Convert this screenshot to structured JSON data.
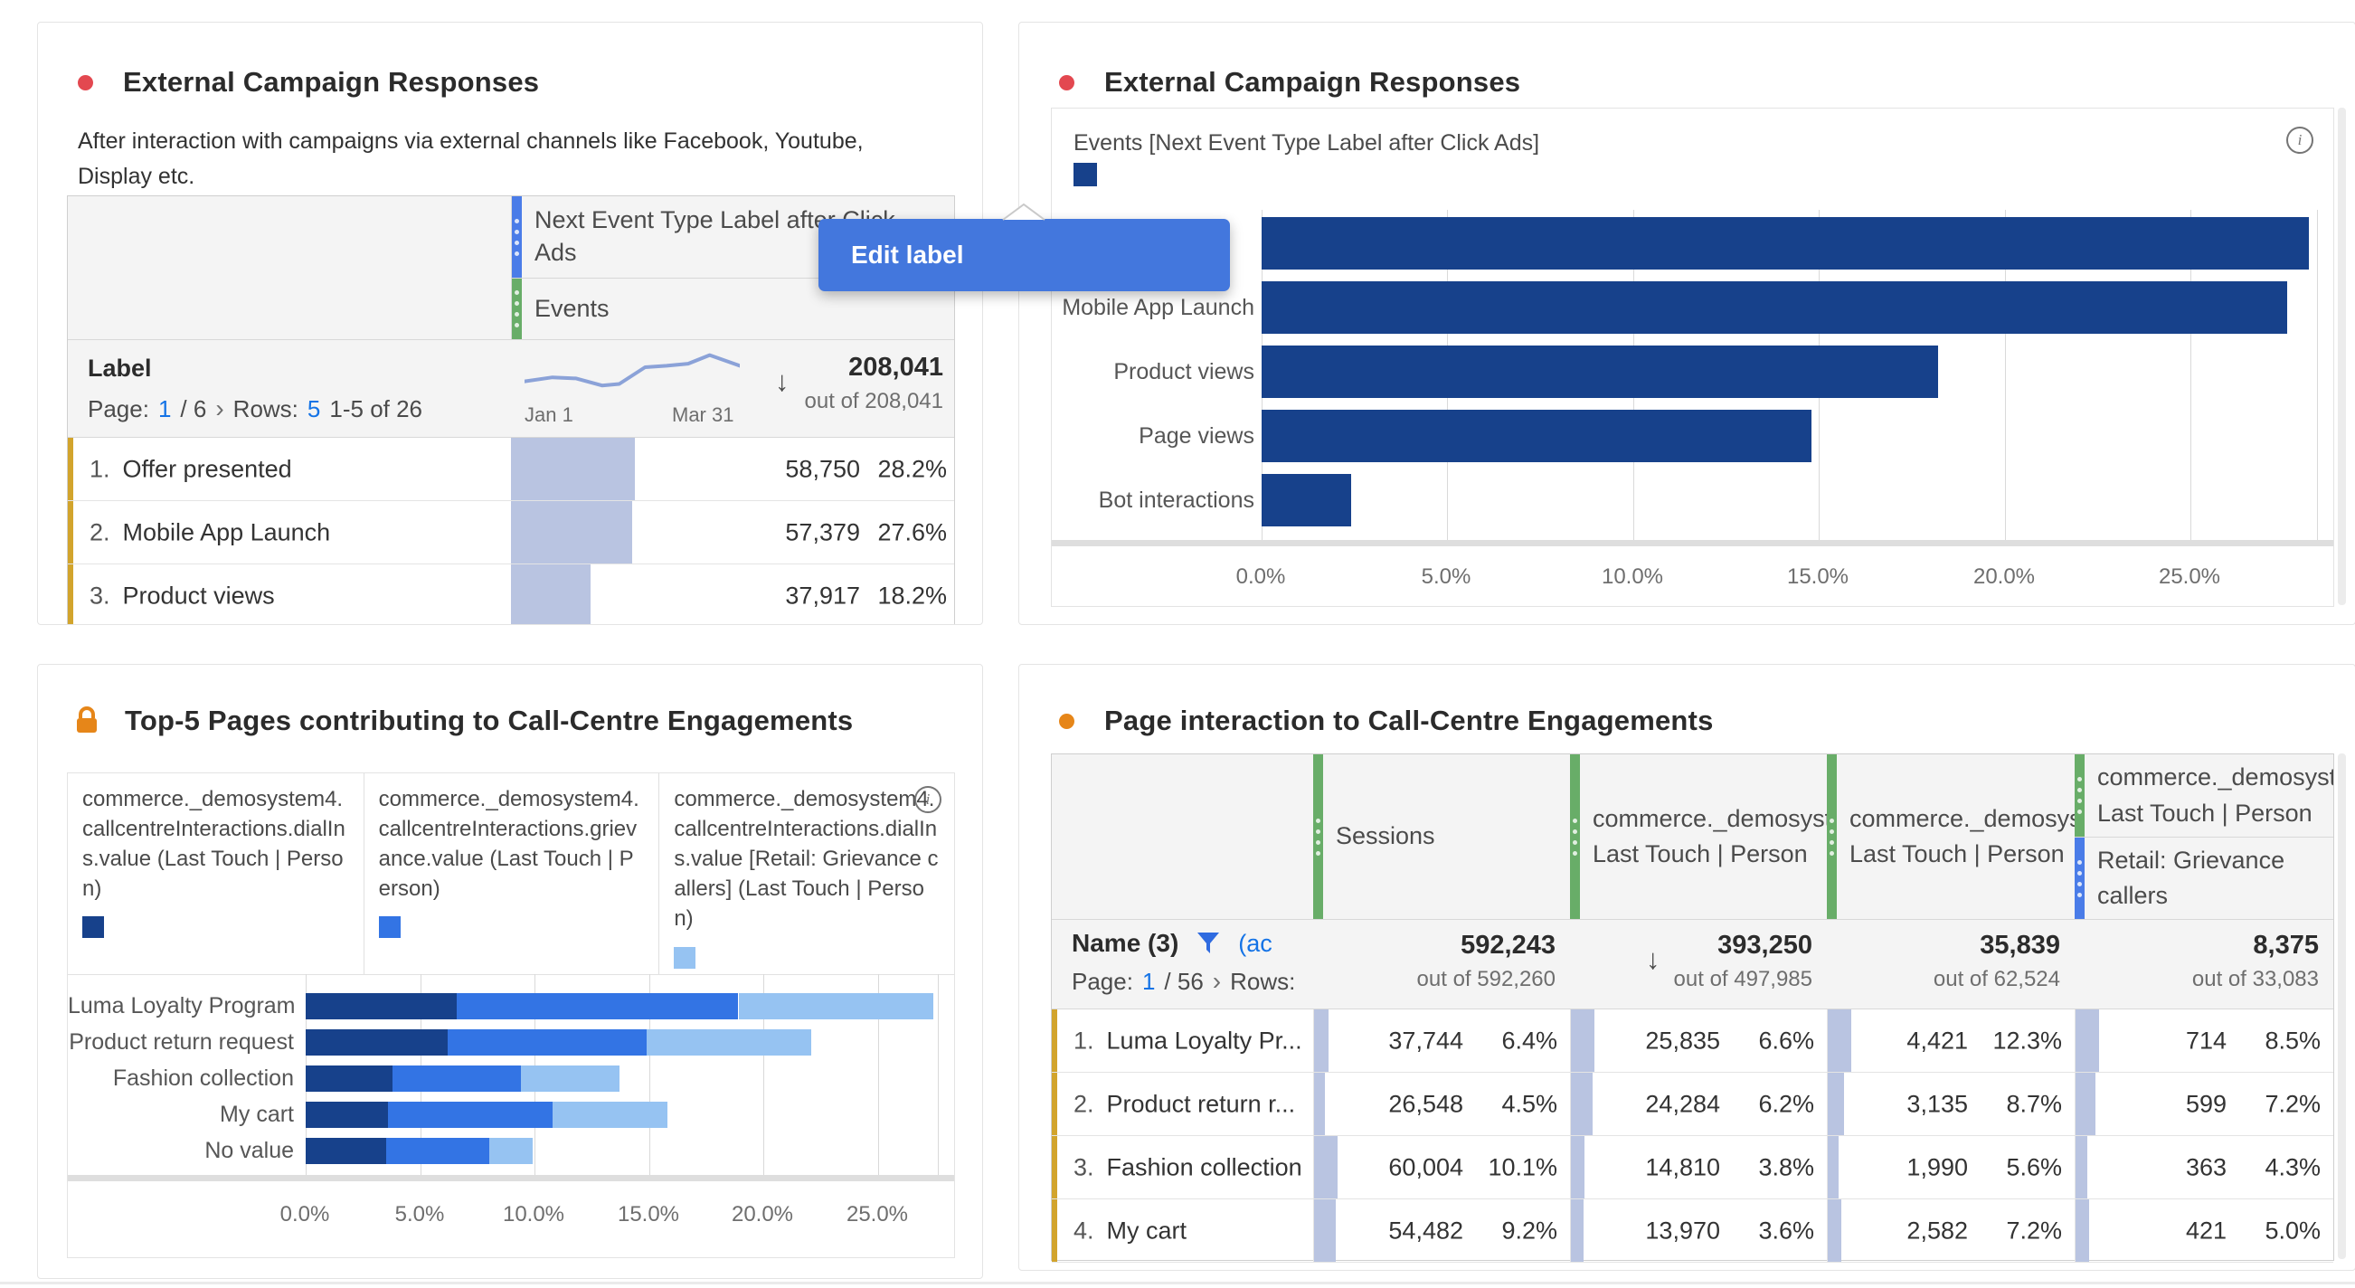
{
  "colors": {
    "accent_red": "#e34850",
    "accent_orange": "#e68619",
    "navy": "#17418b",
    "blue": "#3374e4",
    "light_blue": "#96c3f2",
    "handle_blue": "#4a7ce8",
    "handle_green": "#68ad68",
    "row_accent_yellow": "#d2a42c",
    "cell_bar": "#b9c4e1",
    "tooltip_blue": "#4377dd",
    "link_blue": "#1473e6"
  },
  "tooltip": {
    "label": "Edit label"
  },
  "icons": {
    "info": "i",
    "sort_desc": "↓",
    "chevron": "›",
    "lock": "lock-shape",
    "filter": "funnel-shape"
  },
  "sparkline": {
    "start_label": "Jan 1",
    "end_label": "Mar 31",
    "points": [
      [
        0,
        0.62
      ],
      [
        0.13,
        0.54
      ],
      [
        0.24,
        0.56
      ],
      [
        0.36,
        0.7
      ],
      [
        0.44,
        0.67
      ],
      [
        0.56,
        0.34
      ],
      [
        0.66,
        0.31
      ],
      [
        0.76,
        0.27
      ],
      [
        0.86,
        0.1
      ],
      [
        1,
        0.31
      ]
    ]
  },
  "panels": {
    "campaign_table": {
      "title": "External Campaign Responses",
      "description": "After interaction with campaigns via external channels like Facebook, Youtube, Display etc.",
      "table": {
        "dimension_header": "Next Event Type Label after Click Ads",
        "metric_header": "Events",
        "summary": {
          "label": "Label",
          "page_label": "Page:",
          "page_current": "1",
          "page_rest": "/ 6",
          "rows_label": "Rows:",
          "rows_value": "5",
          "range": "1-5 of 26",
          "total": "208,041",
          "out_of": "out of 208,041"
        },
        "rows": [
          {
            "index": "1.",
            "label": "Offer presented",
            "v": 58750,
            "value": "58,750",
            "pct": "28.2%"
          },
          {
            "index": "2.",
            "label": "Mobile App Launch",
            "v": 57379,
            "value": "57,379",
            "pct": "27.6%"
          },
          {
            "index": "3.",
            "label": "Product views",
            "v": 37917,
            "value": "37,917",
            "pct": "18.2%"
          }
        ]
      }
    },
    "campaign_chart": {
      "title": "External Campaign Responses",
      "legend_label": "Events [Next Event Type Label after Click Ads]"
    },
    "top_pages": {
      "title": "Top-5 Pages contributing to Call-Centre Engagements",
      "legend": [
        {
          "label": "commerce._demosystem4.callcentreInteractions.dialIns.value (Last Touch | Person)",
          "color": "#17418b"
        },
        {
          "label": "commerce._demosystem4.callcentreInteractions.grievance.value (Last Touch | Person)",
          "color": "#3374e4"
        },
        {
          "label": "commerce._demosystem4.callcentreInteractions.dialIns.value [Retail: Grievance callers] (Last Touch | Person)",
          "color": "#96c3f2"
        }
      ]
    },
    "page_interaction": {
      "title": "Page interaction to Call-Centre Engagements",
      "table": {
        "columns": [
          {
            "label": "Sessions"
          },
          {
            "line1": "commerce._demosyste",
            "line2": "Last Touch | Person"
          },
          {
            "line1": "commerce._demosyste",
            "line2": "Last Touch | Person"
          },
          {
            "line1": "commerce._demosyste",
            "line2": "Last Touch | Person",
            "sub_line1": "Retail: Grievance",
            "sub_line2": "callers"
          }
        ],
        "summary": {
          "name": "Name (3)",
          "filter_suffix": "(ac",
          "page_label": "Page:",
          "page_current": "1",
          "page_rest": "/ 56",
          "rows_label": "Rows:"
        },
        "metrics": [
          {
            "total": "592,243",
            "out_of": "out of 592,260"
          },
          {
            "total": "393,250",
            "out_of": "out of 497,985",
            "sorted": true
          },
          {
            "total": "35,839",
            "out_of": "out of 62,524"
          },
          {
            "total": "8,375",
            "out_of": "out of 33,083"
          }
        ],
        "rows": [
          {
            "index": "1.",
            "label": "Luma Loyalty Pr...",
            "cells": [
              {
                "v": 37744,
                "value": "37,744",
                "pct": "6.4%"
              },
              {
                "v": 25835,
                "value": "25,835",
                "pct": "6.6%"
              },
              {
                "v": 4421,
                "value": "4,421",
                "pct": "12.3%"
              },
              {
                "v": 714,
                "value": "714",
                "pct": "8.5%"
              }
            ]
          },
          {
            "index": "2.",
            "label": "Product return r...",
            "cells": [
              {
                "v": 26548,
                "value": "26,548",
                "pct": "4.5%"
              },
              {
                "v": 24284,
                "value": "24,284",
                "pct": "6.2%"
              },
              {
                "v": 3135,
                "value": "3,135",
                "pct": "8.7%"
              },
              {
                "v": 599,
                "value": "599",
                "pct": "7.2%"
              }
            ]
          },
          {
            "index": "3.",
            "label": "Fashion collection",
            "cells": [
              {
                "v": 60004,
                "value": "60,004",
                "pct": "10.1%"
              },
              {
                "v": 14810,
                "value": "14,810",
                "pct": "3.8%"
              },
              {
                "v": 1990,
                "value": "1,990",
                "pct": "5.6%"
              },
              {
                "v": 363,
                "value": "363",
                "pct": "4.3%"
              }
            ]
          },
          {
            "index": "4.",
            "label": "My cart",
            "cells": [
              {
                "v": 54482,
                "value": "54,482",
                "pct": "9.2%"
              },
              {
                "v": 13970,
                "value": "13,970",
                "pct": "3.6%"
              },
              {
                "v": 2582,
                "value": "2,582",
                "pct": "7.2%"
              },
              {
                "v": 421,
                "value": "421",
                "pct": "5.0%"
              }
            ]
          }
        ]
      }
    }
  },
  "chart_data": [
    {
      "type": "bar",
      "orientation": "horizontal",
      "title": "External Campaign Responses",
      "legend": [
        "Events [Next Event Type Label after Click Ads]"
      ],
      "legend_position": "top-left",
      "categories": [
        "",
        "Mobile App Launch",
        "Product views",
        "Page views",
        "Bot interactions"
      ],
      "values": [
        28.2,
        27.6,
        18.2,
        14.8,
        2.4
      ],
      "unit": "%",
      "xlim": [
        0,
        28.4
      ],
      "x_ticks": [
        0,
        5,
        10,
        15,
        20,
        25
      ],
      "x_tick_labels": [
        "0.0%",
        "5.0%",
        "10.0%",
        "15.0%",
        "20.0%",
        "25.0%"
      ],
      "grid": true,
      "bar_color": "#17418b"
    },
    {
      "type": "bar",
      "stacked": true,
      "orientation": "horizontal",
      "title": "Top-5 Pages contributing to Call-Centre Engagements",
      "categories": [
        "Luma Loyalty Program",
        "Product return request",
        "Fashion collection",
        "My cart",
        "No value"
      ],
      "series": [
        {
          "name": "commerce._demosystem4.callcentreInteractions.dialIns.value (Last Touch | Person)",
          "color": "#17418b",
          "values": [
            6.6,
            6.2,
            3.8,
            3.6,
            3.5
          ]
        },
        {
          "name": "commerce._demosystem4.callcentreInteractions.grievance.value (Last Touch | Person)",
          "color": "#3374e4",
          "values": [
            12.3,
            8.7,
            5.6,
            7.2,
            4.5
          ]
        },
        {
          "name": "commerce._demosystem4.callcentreInteractions.dialIns.value [Retail: Grievance callers] (Last Touch | Person)",
          "color": "#96c3f2",
          "values": [
            8.5,
            7.2,
            4.3,
            5.0,
            1.9
          ]
        }
      ],
      "unit": "%",
      "xlim": [
        0,
        27.6
      ],
      "x_ticks": [
        0,
        5,
        10,
        15,
        20,
        25
      ],
      "x_tick_labels": [
        "0.0%",
        "5.0%",
        "10.0%",
        "15.0%",
        "20.0%",
        "25.0%"
      ],
      "grid": true
    }
  ]
}
